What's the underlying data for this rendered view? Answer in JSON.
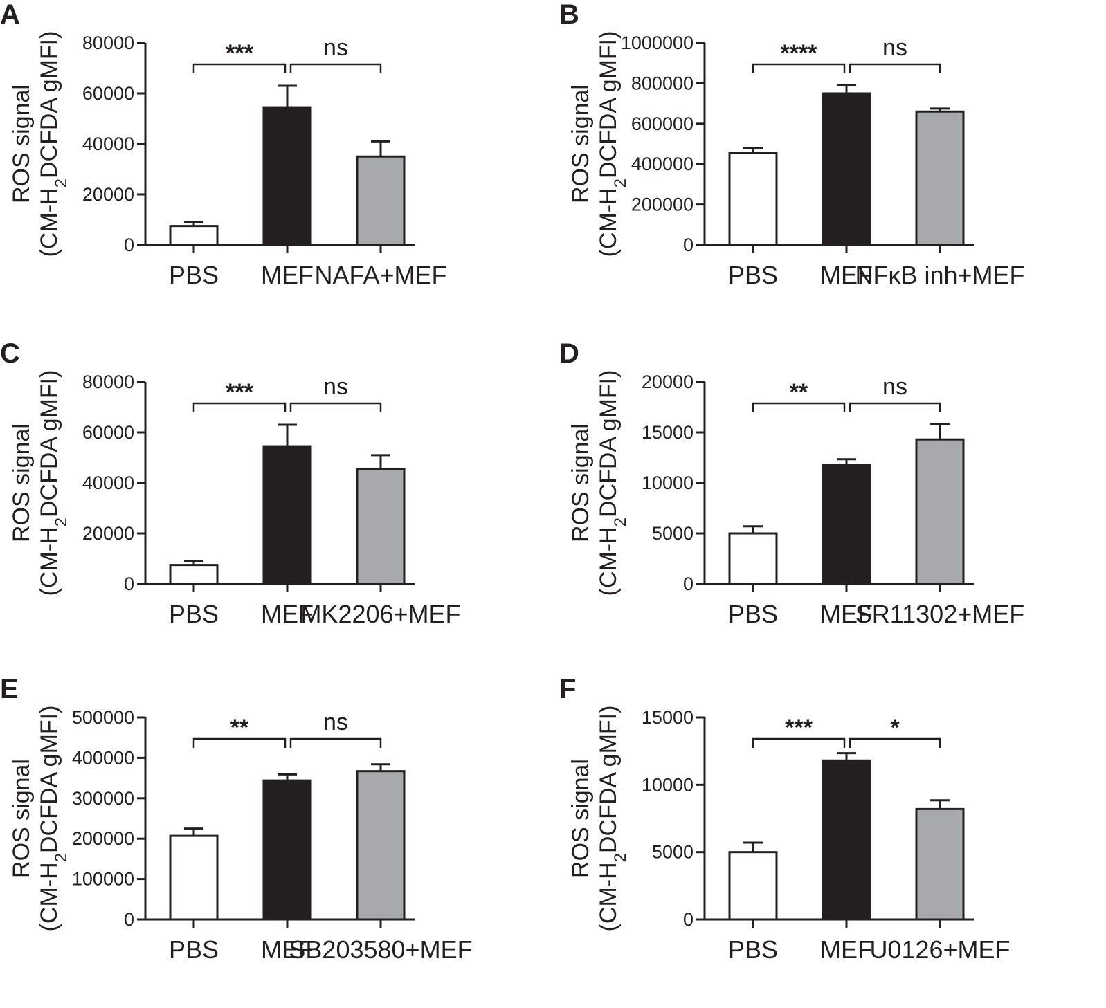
{
  "ylabel_line1": "ROS signal",
  "ylabel_line2_prefix": "(CM-H",
  "ylabel_subscript": "2",
  "ylabel_line2_suffix": "DCFDA gMFI)",
  "colors": {
    "PBS": "#ffffff",
    "MEF": "#231f20",
    "treatment": "#a7a9ac",
    "stroke": "#231f20"
  },
  "chart_data": [
    {
      "panel": "A",
      "type": "bar",
      "categories": [
        "PBS",
        "MEF",
        "NAFA+MEF"
      ],
      "values": [
        7500,
        54500,
        35000
      ],
      "errors": [
        1500,
        8500,
        6000
      ],
      "ylim": [
        0,
        80000
      ],
      "yticks": [
        "0",
        "20000",
        "40000",
        "60000",
        "80000"
      ],
      "ylabel": "ROS signal (CM-H2DCFDA gMFI)",
      "significance": [
        {
          "from": 0,
          "to": 1,
          "label": "***"
        },
        {
          "from": 1,
          "to": 2,
          "label": "ns"
        }
      ]
    },
    {
      "panel": "B",
      "type": "bar",
      "categories": [
        "PBS",
        "MEF",
        "NFκB inh+MEF"
      ],
      "values": [
        455000,
        750000,
        660000
      ],
      "errors": [
        25000,
        40000,
        15000
      ],
      "ylim": [
        0,
        1000000
      ],
      "yticks": [
        "0",
        "200000",
        "400000",
        "600000",
        "800000",
        "1000000"
      ],
      "ylabel": "ROS signal (CM-H2DCFDA gMFI)",
      "significance": [
        {
          "from": 0,
          "to": 1,
          "label": "****"
        },
        {
          "from": 1,
          "to": 2,
          "label": "ns"
        }
      ]
    },
    {
      "panel": "C",
      "type": "bar",
      "categories": [
        "PBS",
        "MEF",
        "MK2206+MEF"
      ],
      "values": [
        7500,
        54500,
        45500
      ],
      "errors": [
        1500,
        8500,
        5500
      ],
      "ylim": [
        0,
        80000
      ],
      "yticks": [
        "0",
        "20000",
        "40000",
        "60000",
        "80000"
      ],
      "ylabel": "ROS signal (CM-H2DCFDA gMFI)",
      "significance": [
        {
          "from": 0,
          "to": 1,
          "label": "***"
        },
        {
          "from": 1,
          "to": 2,
          "label": "ns"
        }
      ]
    },
    {
      "panel": "D",
      "type": "bar",
      "categories": [
        "PBS",
        "MEF",
        "SR11302+MEF"
      ],
      "values": [
        5000,
        11800,
        14300
      ],
      "errors": [
        700,
        550,
        1500
      ],
      "ylim": [
        0,
        20000
      ],
      "yticks": [
        "0",
        "5000",
        "10000",
        "15000",
        "20000"
      ],
      "ylabel": "ROS signal (CM-H2DCFDA gMFI)",
      "significance": [
        {
          "from": 0,
          "to": 1,
          "label": "**"
        },
        {
          "from": 1,
          "to": 2,
          "label": "ns"
        }
      ]
    },
    {
      "panel": "E",
      "type": "bar",
      "categories": [
        "PBS",
        "MEF",
        "SB203580+MEF"
      ],
      "values": [
        207000,
        344000,
        367000
      ],
      "errors": [
        18000,
        15000,
        17000
      ],
      "ylim": [
        0,
        500000
      ],
      "yticks": [
        "0",
        "100000",
        "200000",
        "300000",
        "400000",
        "500000"
      ],
      "ylabel": "ROS signal (CM-H2DCFDA gMFI)",
      "significance": [
        {
          "from": 0,
          "to": 1,
          "label": "**"
        },
        {
          "from": 1,
          "to": 2,
          "label": "ns"
        }
      ]
    },
    {
      "panel": "F",
      "type": "bar",
      "categories": [
        "PBS",
        "MEF",
        "U0126+MEF"
      ],
      "values": [
        5000,
        11800,
        8200
      ],
      "errors": [
        700,
        550,
        650
      ],
      "ylim": [
        0,
        15000
      ],
      "yticks": [
        "0",
        "5000",
        "10000",
        "15000"
      ],
      "ylabel": "ROS signal (CM-H2DCFDA gMFI)",
      "significance": [
        {
          "from": 0,
          "to": 1,
          "label": "***"
        },
        {
          "from": 1,
          "to": 2,
          "label": "*"
        }
      ]
    }
  ]
}
